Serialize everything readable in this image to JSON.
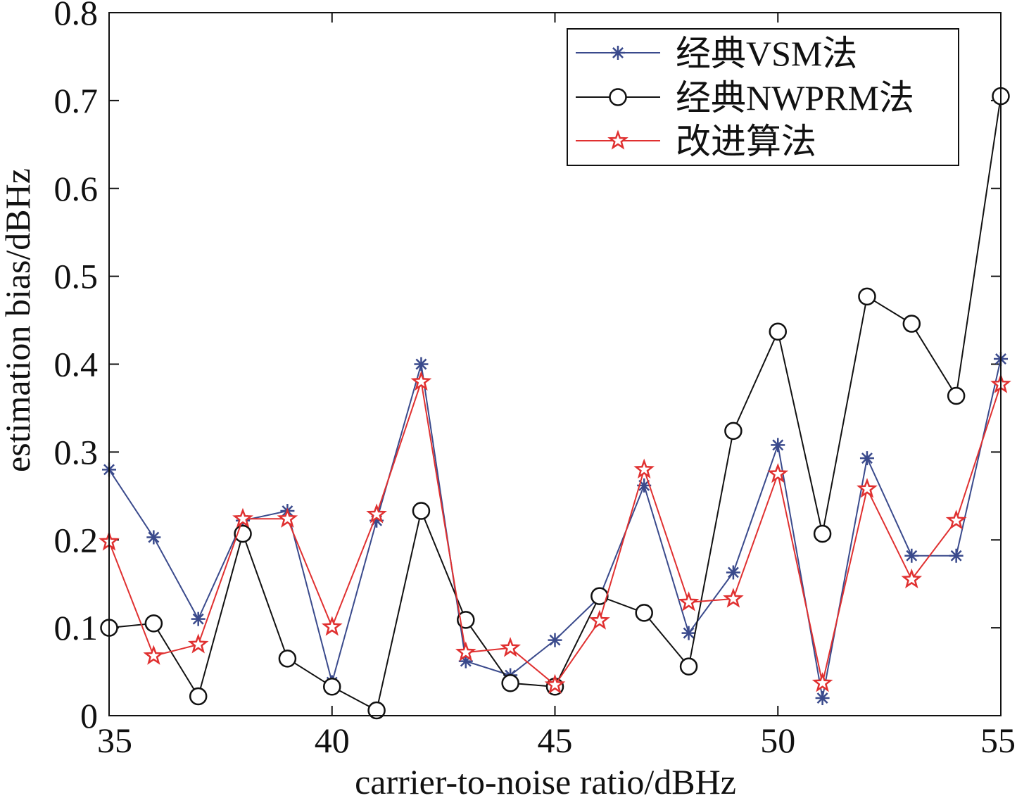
{
  "chart_data": {
    "type": "line",
    "title": "",
    "xlabel": "carrier-to-noise ratio/dBHz",
    "ylabel": "estimation bias/dBHz",
    "xlim": [
      35,
      55
    ],
    "ylim": [
      0,
      0.8
    ],
    "x_ticks": [
      35,
      40,
      45,
      50,
      55
    ],
    "y_ticks": [
      0,
      0.1,
      0.2,
      0.3,
      0.4,
      0.5,
      0.6,
      0.7,
      0.8
    ],
    "x_tick_labels": [
      "35",
      "40",
      "45",
      "50",
      "55"
    ],
    "y_tick_labels": [
      "0",
      "0.1",
      "0.2",
      "0.3",
      "0.4",
      "0.5",
      "0.6",
      "0.7",
      "0.8"
    ],
    "grid": false,
    "legend_position": "top-right",
    "x": [
      35,
      36,
      37,
      38,
      39,
      40,
      41,
      42,
      43,
      44,
      45,
      46,
      47,
      48,
      49,
      50,
      51,
      52,
      53,
      54,
      55
    ],
    "series": [
      {
        "name": "经典VSM法",
        "color": "#3a4a8c",
        "marker": "asterisk",
        "values": [
          0.28,
          0.203,
          0.11,
          0.222,
          0.233,
          0.038,
          0.222,
          0.4,
          0.062,
          0.046,
          0.086,
          0.135,
          0.262,
          0.094,
          0.163,
          0.308,
          0.02,
          0.293,
          0.182,
          0.182,
          0.406
        ]
      },
      {
        "name": "经典NWPRM法",
        "color": "#111111",
        "marker": "circle",
        "values": [
          0.1,
          0.105,
          0.022,
          0.207,
          0.065,
          0.033,
          0.006,
          0.233,
          0.109,
          0.037,
          0.033,
          0.136,
          0.117,
          0.056,
          0.324,
          0.437,
          0.207,
          0.477,
          0.446,
          0.364,
          0.705
        ]
      },
      {
        "name": "改进算法",
        "color": "#e03030",
        "marker": "star",
        "values": [
          0.198,
          0.068,
          0.081,
          0.224,
          0.224,
          0.101,
          0.229,
          0.38,
          0.072,
          0.077,
          0.035,
          0.108,
          0.28,
          0.129,
          0.133,
          0.275,
          0.037,
          0.258,
          0.155,
          0.222,
          0.377
        ]
      }
    ]
  }
}
